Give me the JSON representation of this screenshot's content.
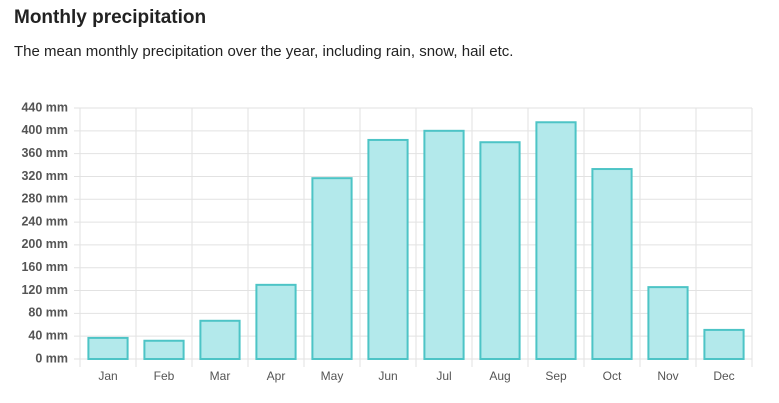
{
  "chart_data": {
    "type": "bar",
    "title": "Monthly precipitation",
    "subtitle": "The mean monthly precipitation over the year, including rain, snow, hail etc.",
    "categories": [
      "Jan",
      "Feb",
      "Mar",
      "Apr",
      "May",
      "Jun",
      "Jul",
      "Aug",
      "Sep",
      "Oct",
      "Nov",
      "Dec"
    ],
    "values": [
      37,
      32,
      67,
      130,
      317,
      384,
      400,
      380,
      415,
      333,
      126,
      51
    ],
    "color": "#b3e9eb",
    "border_color": "#4dc4c6",
    "ylim": [
      0,
      440
    ],
    "yticks": [
      {
        "value": 0,
        "label": "0 mm"
      },
      {
        "value": 40,
        "label": "40 mm"
      },
      {
        "value": 80,
        "label": "80 mm"
      },
      {
        "value": 120,
        "label": "120 mm"
      },
      {
        "value": 160,
        "label": "160 mm"
      },
      {
        "value": 200,
        "label": "200 mm"
      },
      {
        "value": 240,
        "label": "240 mm"
      },
      {
        "value": 280,
        "label": "280 mm"
      },
      {
        "value": 320,
        "label": "320 mm"
      },
      {
        "value": 360,
        "label": "360 mm"
      },
      {
        "value": 400,
        "label": "400 mm"
      },
      {
        "value": 440,
        "label": "440 mm"
      }
    ],
    "grid": true
  }
}
